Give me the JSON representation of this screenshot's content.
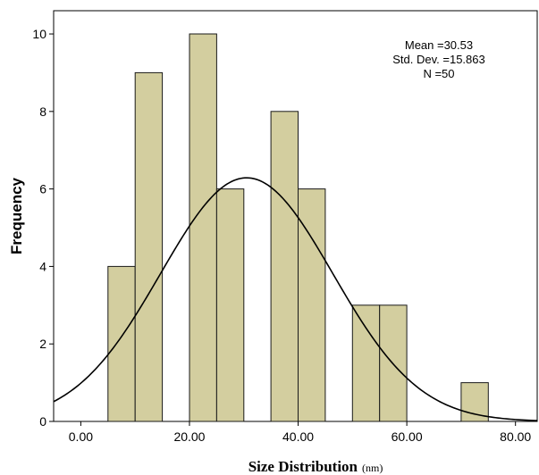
{
  "chart_data": {
    "type": "bar",
    "bin_edges": [
      0,
      5,
      10,
      15,
      20,
      25,
      30,
      35,
      40,
      45,
      50,
      55,
      60,
      65,
      70,
      75,
      80
    ],
    "values": [
      0,
      4,
      9,
      0,
      10,
      6,
      0,
      8,
      6,
      0,
      3,
      3,
      0,
      0,
      1,
      0
    ],
    "normal_curve": {
      "mean": 30.53,
      "std": 15.863,
      "n": 50,
      "bin_width": 5
    },
    "xlim": [
      -5,
      84
    ],
    "ylim": [
      0,
      10.6
    ],
    "x_ticks": [
      0,
      20,
      40,
      60,
      80
    ],
    "x_tick_labels": [
      "0.00",
      "20.00",
      "40.00",
      "60.00",
      "80.00"
    ],
    "y_ticks": [
      0,
      2,
      4,
      6,
      8,
      10
    ],
    "y_tick_labels": [
      "0",
      "2",
      "4",
      "6",
      "8",
      "10"
    ],
    "ylabel": "Frequency",
    "xlabel": "Size Distribution",
    "xlabel_unit": "(nm)",
    "stats": [
      "Mean =30.53",
      "Std. Dev. =15.863",
      "N =50"
    ],
    "grid": false,
    "colors": {
      "bar_fill": "#d3ce9f",
      "bar_stroke": "#1a1a1a",
      "curve": "#000000",
      "axis": "#000000"
    }
  }
}
